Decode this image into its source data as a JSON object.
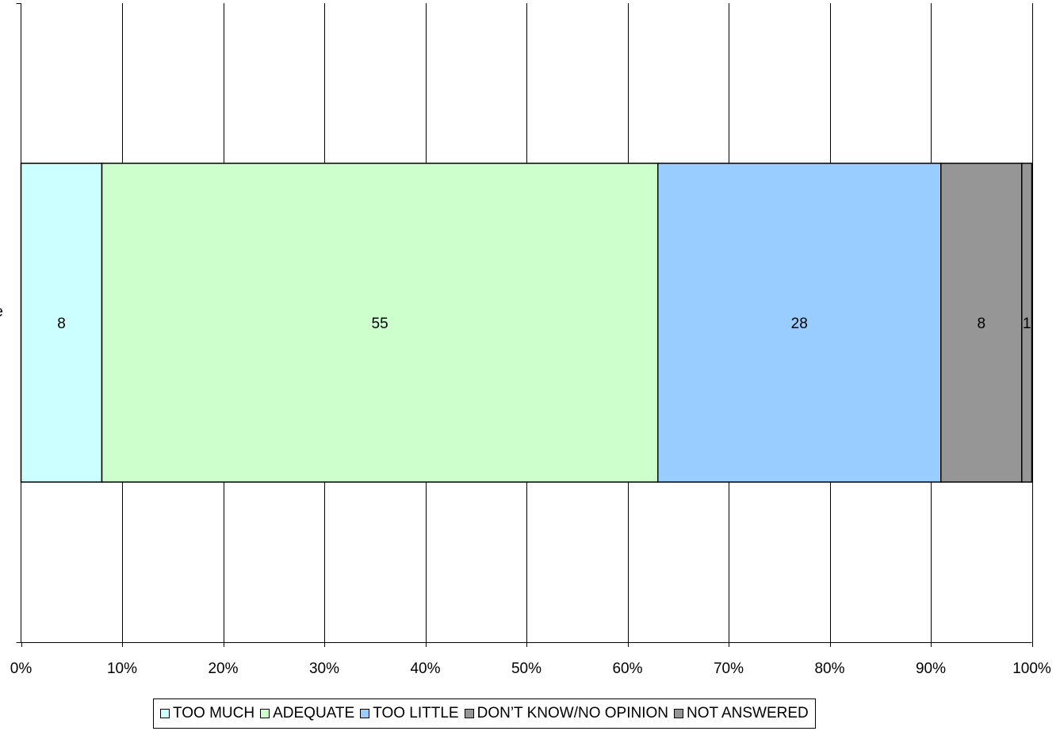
{
  "chart_data": {
    "type": "bar",
    "orientation": "horizontal",
    "stacked": "percent",
    "categories": [
      "e"
    ],
    "series": [
      {
        "name": "TOO MUCH",
        "values": [
          8
        ],
        "color": "#ccffff"
      },
      {
        "name": "ADEQUATE",
        "values": [
          55
        ],
        "color": "#ccffcc"
      },
      {
        "name": "TOO LITTLE",
        "values": [
          28
        ],
        "color": "#99ccff"
      },
      {
        "name": "DON’T KNOW/NO OPINION",
        "values": [
          8
        ],
        "color": "#969696"
      },
      {
        "name": "NOT ANSWERED",
        "values": [
          1
        ],
        "color": "#969696"
      }
    ],
    "x_ticks": [
      "0%",
      "10%",
      "20%",
      "30%",
      "40%",
      "50%",
      "60%",
      "70%",
      "80%",
      "90%",
      "100%"
    ],
    "xlim": [
      0,
      100
    ],
    "grid": "vertical",
    "legend_position": "bottom"
  }
}
